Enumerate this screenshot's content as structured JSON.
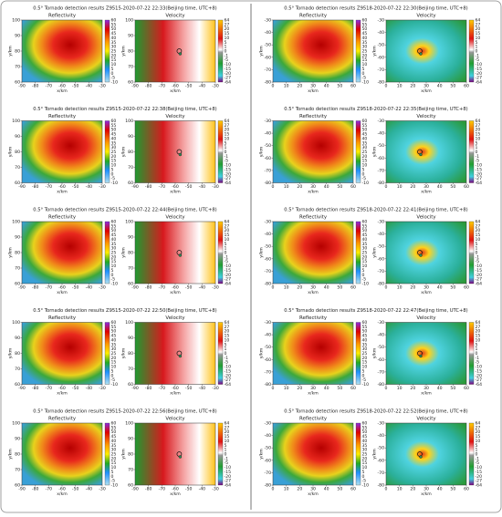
{
  "panel_titles": [
    "Reflectivity",
    "Velocity"
  ],
  "x_label": "x/km",
  "y_label": "y/km",
  "reflectivity_ticks": [
    60,
    55,
    50,
    45,
    40,
    35,
    30,
    25,
    20,
    15,
    10,
    5,
    0,
    -5,
    -10
  ],
  "velocity_ticks": [
    64,
    27,
    20,
    15,
    10,
    5,
    1,
    0,
    -1,
    -5,
    -10,
    -15,
    -20,
    -27,
    -64
  ],
  "columns": [
    {
      "xticks": [
        -90,
        -80,
        -70,
        -60,
        -50,
        -40,
        -30
      ],
      "yticks": [
        100,
        90,
        80,
        70,
        60
      ],
      "rows": [
        {
          "title": "0.5° Tornado detection results Z9515-2020-07-22 22:33(Beijing time, UTC+8)"
        },
        {
          "title": "0.5° Tornado detection results Z9515-2020-07-22 22:38(Beijing time, UTC+8)"
        },
        {
          "title": "0.5° Tornado detection results Z9515-2020-07-22 22:44(Beijing time, UTC+8)"
        },
        {
          "title": "0.5° Tornado detection results Z9515-2020-07-22 22:50(Beijing time, UTC+8)"
        },
        {
          "title": "0.5° Tornado detection results Z9515-2020-07-22 22:56(Beijing time, UTC+8)"
        }
      ]
    },
    {
      "xticks": [
        0,
        10,
        20,
        30,
        40,
        50,
        60
      ],
      "yticks": [
        -30,
        -40,
        -50,
        -60,
        -70,
        -80
      ],
      "rows": [
        {
          "title": "0.5° Tornado detection results Z9518-2020-07-22 22:30(Beijing time, UTC+8)"
        },
        {
          "title": "0.5° Tornado detection results Z9518-2020-07-22 22:35(Beijing time, UTC+8)"
        },
        {
          "title": "0.5° Tornado detection results Z9518-2020-07-22 22:41(Beijing time, UTC+8)"
        },
        {
          "title": "0.5° Tornado detection results Z9518-2020-07-22 22:47(Beijing time, UTC+8)"
        },
        {
          "title": "0.5° Tornado detection results Z9518-2020-07-22 22:52(Beijing time, UTC+8)"
        }
      ]
    }
  ]
}
